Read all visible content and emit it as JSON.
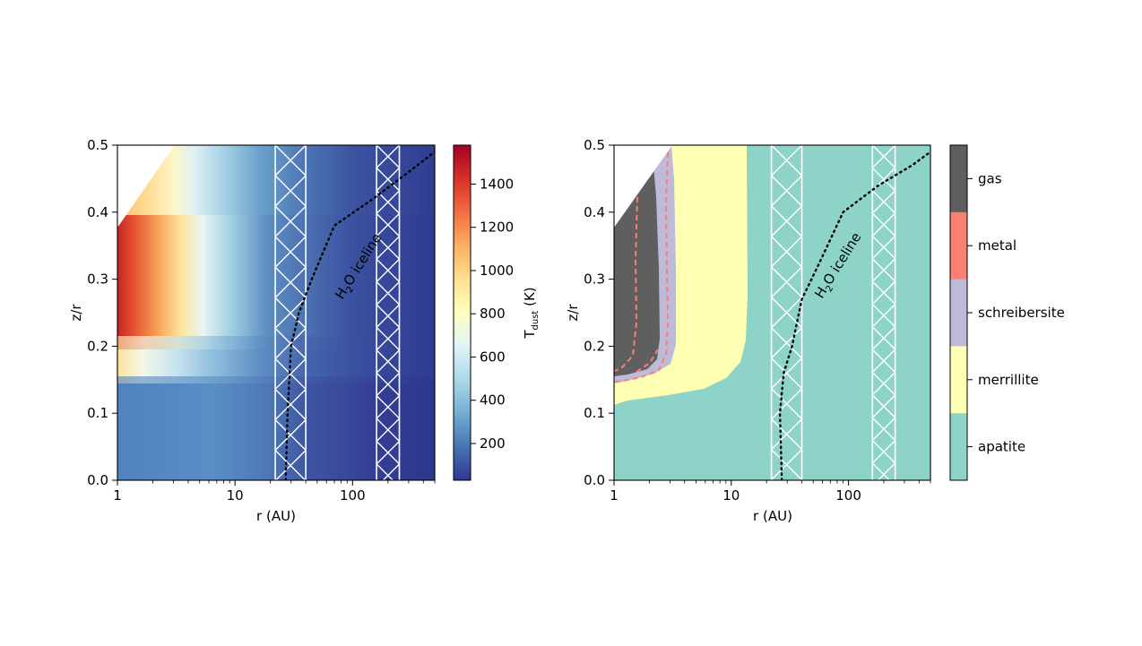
{
  "chart_data": [
    {
      "type": "heatmap",
      "xlabel": "r (AU)",
      "ylabel": "z/r",
      "x_scale": "log",
      "xlim": [
        1,
        500
      ],
      "ylim": [
        0,
        0.5
      ],
      "x_ticks": [
        "1",
        "10",
        "100"
      ],
      "x_tick_values": [
        1,
        10,
        100
      ],
      "y_ticks": [
        "0.0",
        "0.1",
        "0.2",
        "0.3",
        "0.4",
        "0.5"
      ],
      "y_tick_values": [
        0,
        0.1,
        0.2,
        0.3,
        0.4,
        0.5
      ],
      "colorbar": {
        "label_main": "T",
        "label_sub": "dust",
        "label_unit": " (K)",
        "range": [
          30,
          1580
        ],
        "ticks": [
          "200",
          "400",
          "600",
          "800",
          "1000",
          "1200",
          "1400"
        ],
        "tick_values": [
          200,
          400,
          600,
          800,
          1000,
          1200,
          1400
        ],
        "colormap": "RdYlBu_r"
      },
      "hatched_regions_r": [
        [
          22,
          40
        ],
        [
          160,
          250
        ]
      ],
      "iceline": {
        "label_main": "H",
        "label_sub": "2",
        "label_rest": "O iceline",
        "points": [
          [
            27,
            0.0
          ],
          [
            28,
            0.1
          ],
          [
            30,
            0.2
          ],
          [
            35,
            0.25
          ],
          [
            45,
            0.3
          ],
          [
            70,
            0.38
          ],
          [
            150,
            0.42
          ],
          [
            300,
            0.46
          ],
          [
            500,
            0.49
          ]
        ]
      },
      "values_note": "dust temperature field; hottest (~1550 K) at r=1 AU, z/r 0.17-0.33"
    },
    {
      "type": "heatmap",
      "xlabel": "r (AU)",
      "ylabel": "z/r",
      "x_scale": "log",
      "xlim": [
        1,
        500
      ],
      "ylim": [
        0,
        0.5
      ],
      "x_ticks": [
        "1",
        "10",
        "100"
      ],
      "x_tick_values": [
        1,
        10,
        100
      ],
      "y_ticks": [
        "0.0",
        "0.1",
        "0.2",
        "0.3",
        "0.4",
        "0.5"
      ],
      "y_tick_values": [
        0,
        0.1,
        0.2,
        0.3,
        0.4,
        0.5
      ],
      "categories": [
        "gas",
        "metal",
        "schreibersite",
        "merrillite",
        "apatite"
      ],
      "category_colors": [
        "#5f5f5f",
        "#fa8072",
        "#bebada",
        "#ffffb3",
        "#8dd3c7"
      ],
      "hatched_regions_r": [
        [
          22,
          40
        ],
        [
          160,
          250
        ]
      ],
      "iceline": {
        "label_main": "H",
        "label_sub": "2",
        "label_rest": "O iceline",
        "points": [
          [
            27,
            0.0
          ],
          [
            26,
            0.1
          ],
          [
            28,
            0.16
          ],
          [
            33,
            0.2
          ],
          [
            40,
            0.27
          ],
          [
            55,
            0.32
          ],
          [
            90,
            0.4
          ],
          [
            180,
            0.44
          ],
          [
            350,
            0.47
          ],
          [
            500,
            0.49
          ]
        ]
      }
    }
  ],
  "colors": {
    "hatch": "#ffffff",
    "iceline": "#000000",
    "metal_boundary": "#fa8072",
    "frame": "#000000"
  }
}
